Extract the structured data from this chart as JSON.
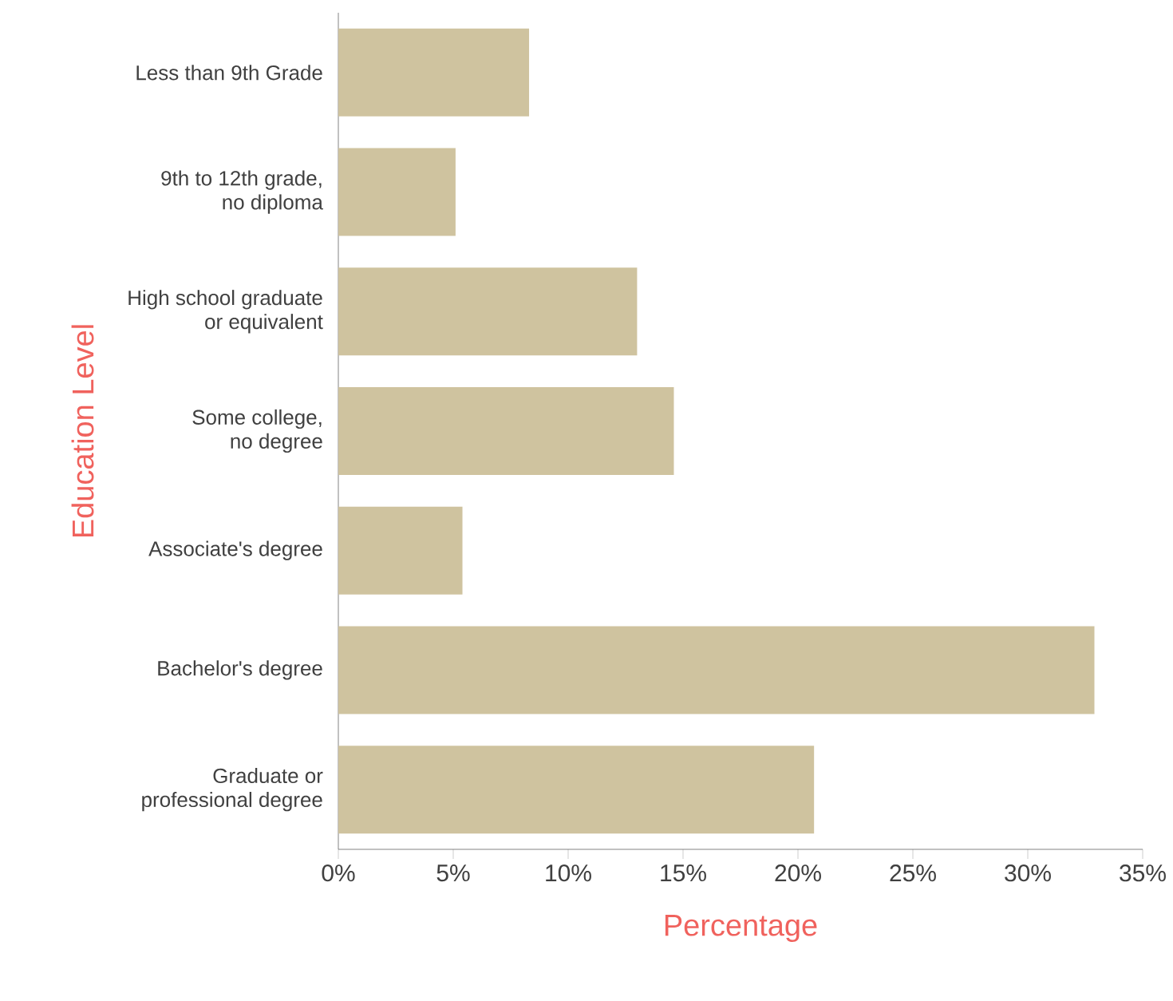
{
  "chart_data": {
    "type": "bar",
    "orientation": "horizontal",
    "xlabel": "Percentage",
    "ylabel": "Education Level",
    "categories": [
      "Less than 9th Grade",
      "9th to 12th grade,\nno diploma",
      "High school graduate\nor equivalent",
      "Some college,\nno degree",
      "Associate's degree",
      "Bachelor's degree",
      "Graduate or\nprofessional degree"
    ],
    "values": [
      8.3,
      5.1,
      13.0,
      14.6,
      5.4,
      32.9,
      20.7
    ],
    "color": "#cfc39f",
    "xlim": [
      0,
      35
    ],
    "xticks": [
      {
        "value": 0,
        "label": "0%"
      },
      {
        "value": 5,
        "label": "5%"
      },
      {
        "value": 10,
        "label": "10%"
      },
      {
        "value": 15,
        "label": "15%"
      },
      {
        "value": 20,
        "label": "20%"
      },
      {
        "value": 25,
        "label": "25%"
      },
      {
        "value": 30,
        "label": "30%"
      },
      {
        "value": 35,
        "label": "35%"
      }
    ],
    "marker": "none"
  }
}
